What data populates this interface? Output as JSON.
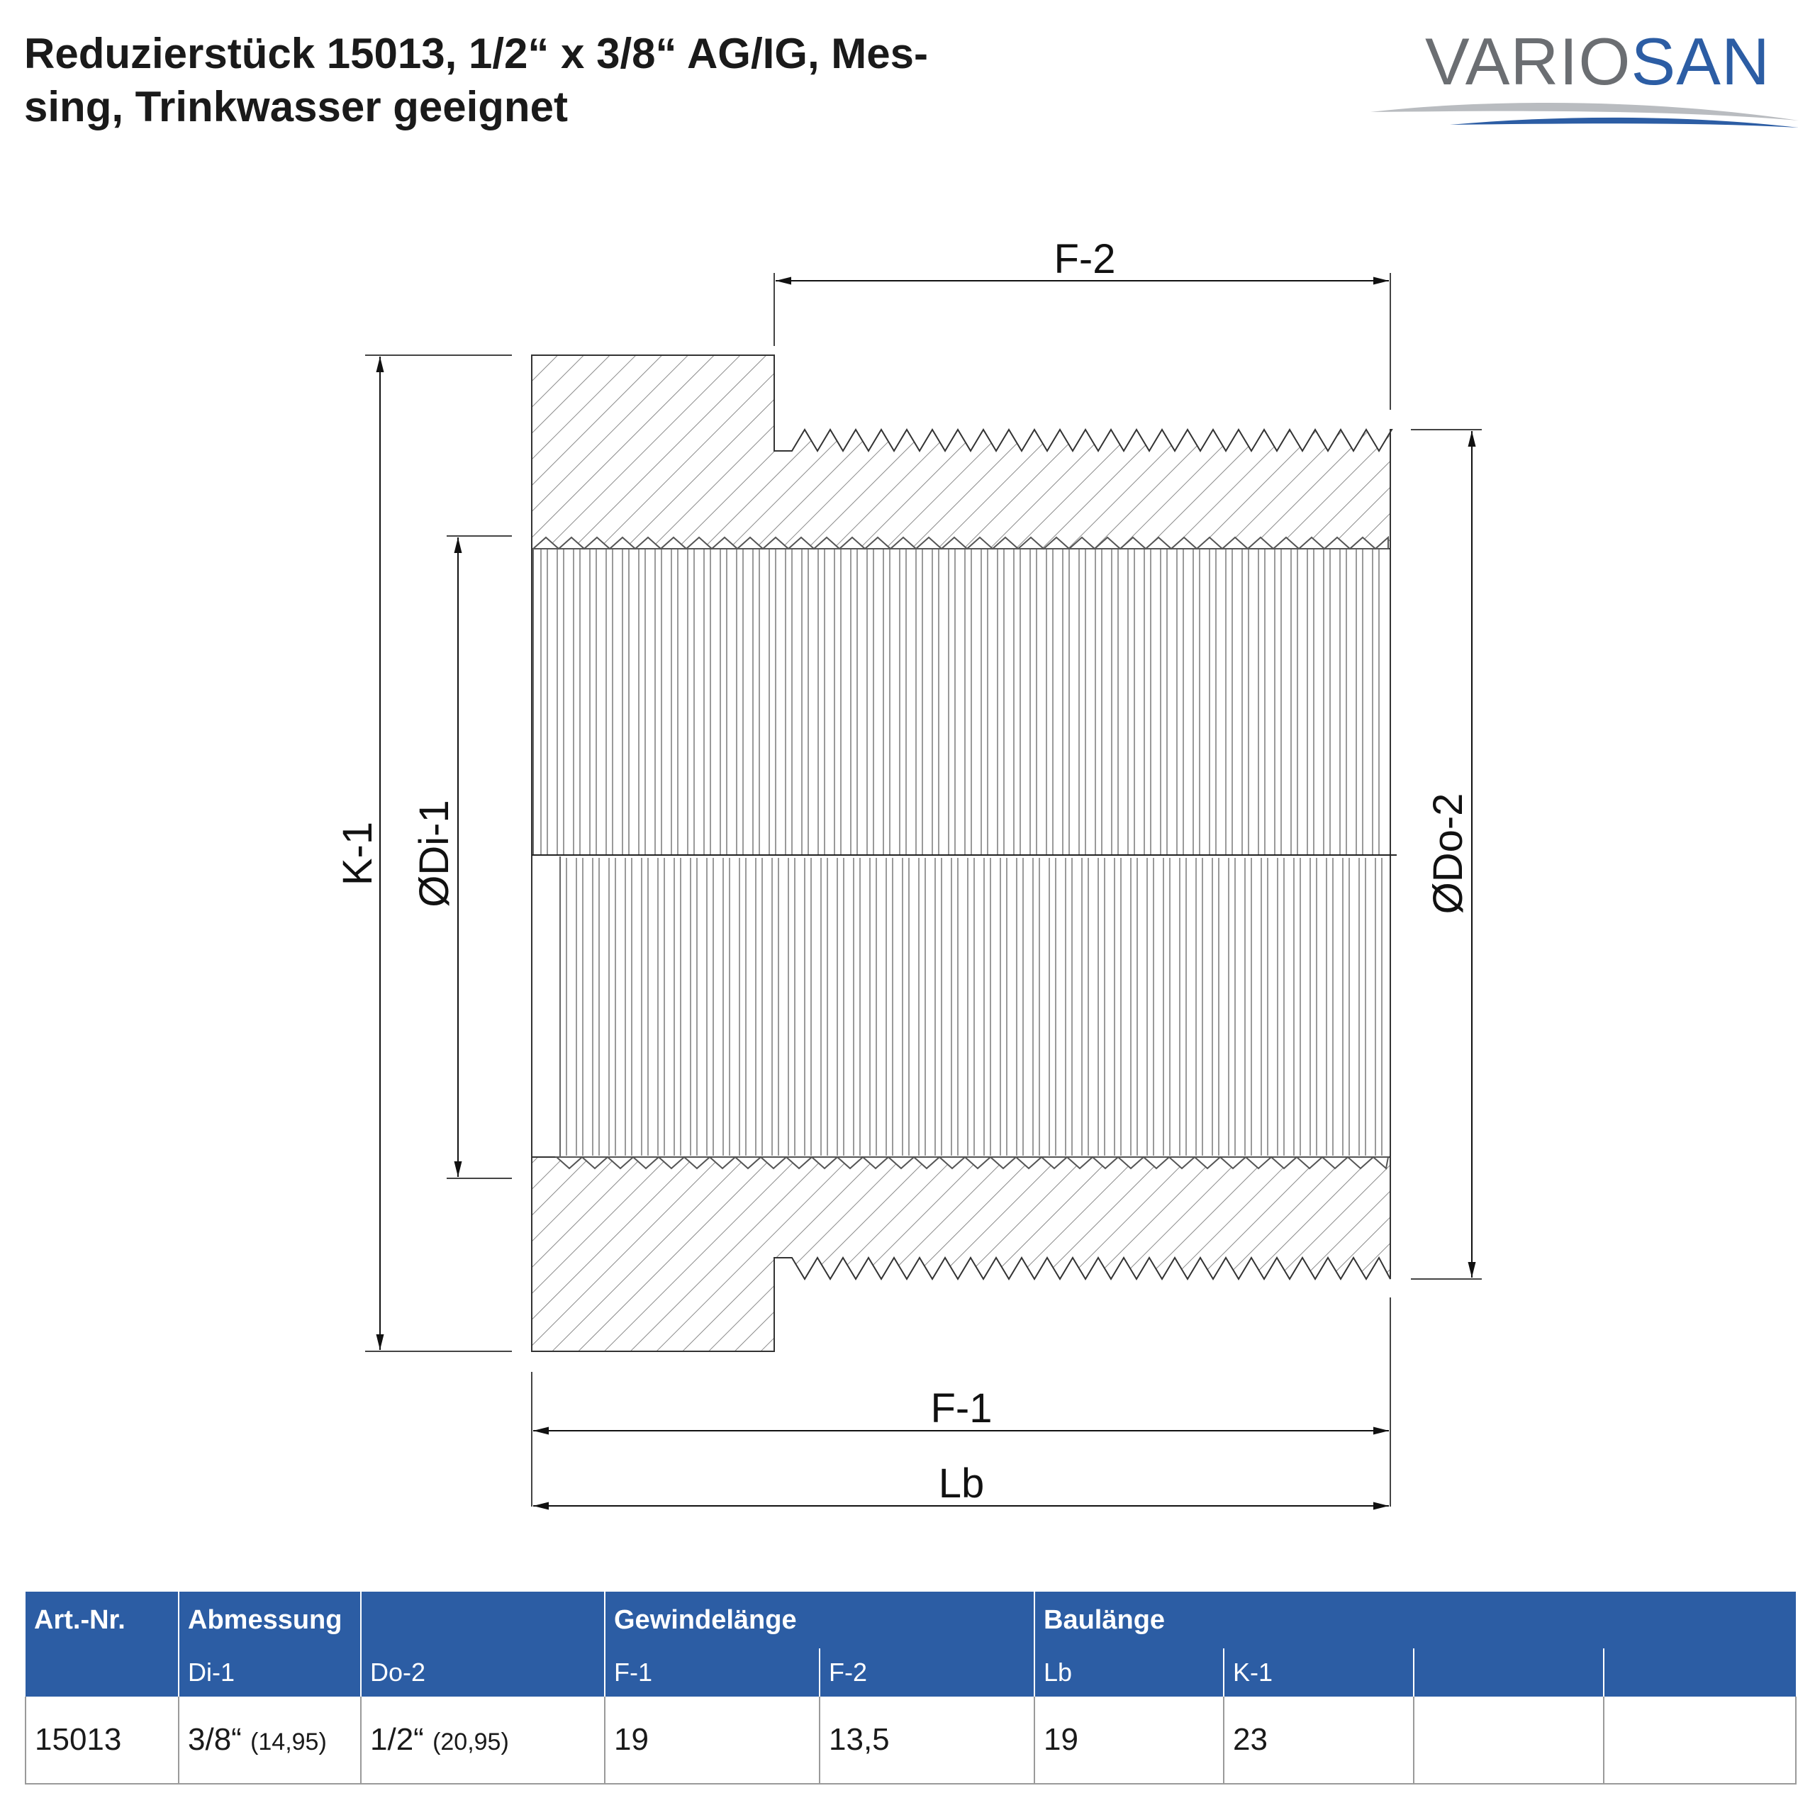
{
  "title": {
    "line1": "Reduzierstück 15013, 1/2“ x 3/8“ AG/IG, Mes-",
    "line2": "sing, Trinkwasser geeignet"
  },
  "logo": {
    "part1": "VARIO",
    "part2": "SAN",
    "colors": {
      "gray": "#6b6e72",
      "blue": "#2c5da4"
    }
  },
  "drawing": {
    "labels": {
      "f2": "F-2",
      "f1": "F-1",
      "lb": "Lb",
      "k1": "K-1",
      "di1": "ØDi-1",
      "do2": "ØDo-2"
    }
  },
  "table": {
    "header": {
      "art_nr": "Art.-Nr.",
      "abmessung": "Abmessung",
      "gewindelaenge": "Gewindelänge",
      "baulaenge": "Baulänge",
      "di1": "Di-1",
      "do2": "Do-2",
      "f1": "F-1",
      "f2": "F-2",
      "lb": "Lb",
      "k1": "K-1"
    },
    "row": {
      "art_nr": "15013",
      "di1": "3/8“",
      "di1_mm": "(14,95)",
      "do2": "1/2“",
      "do2_mm": "(20,95)",
      "f1": "19",
      "f2": "13,5",
      "lb": "19",
      "k1": "23"
    },
    "colors": {
      "header_bg": "#2c5da4",
      "header_text": "#ffffff",
      "grid": "#9a9a9a"
    }
  }
}
